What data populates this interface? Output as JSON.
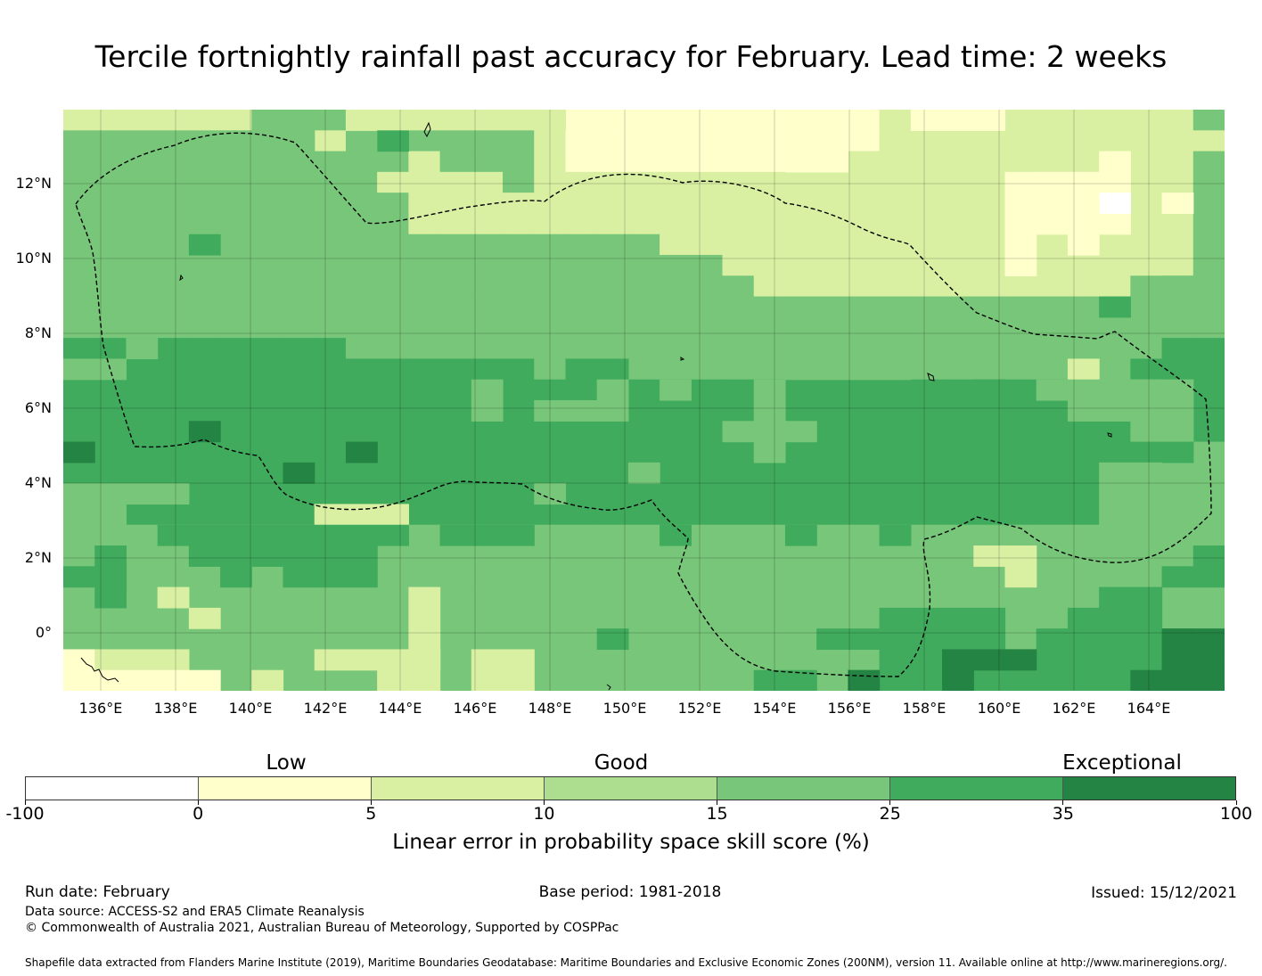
{
  "title": "Tercile fortnightly rainfall past accuracy for February. Lead time: 2 weeks",
  "map": {
    "lat_labels": [
      "12°N",
      "10°N",
      "8°N",
      "6°N",
      "4°N",
      "2°N",
      "0°"
    ],
    "lon_labels": [
      "136°E",
      "138°E",
      "140°E",
      "142°E",
      "144°E",
      "146°E",
      "148°E",
      "150°E",
      "152°E",
      "154°E",
      "156°E",
      "158°E",
      "160°E",
      "162°E",
      "164°E"
    ],
    "skill_grid": [
      "BBBBBBCCCBBBBBBBAAAAAAAAAABBBBBBBBBBC",
      "CCCCCCCCBCBCCCCBAAAAAAAAAABBBBBBBBBBB",
      "CCCCCCCCCCCBCCCBAAAAAAAAABBBBBBBBBBBC",
      "CCCCCCCCCCBBBBCBBBBBBBBBBBBBBBBBBBBBC",
      "CCCCCCCCCCCBBBBBBBBBBBBBBBBBBBBBBBBBC",
      "CCCCCCCCCCCBBBBBBBBBBBBBBBBBBBBBBBBBC",
      "CCCCCCCCCCCCCCCCCCCBBBBBBBBBBBBBBBBBC",
      "CCCCCCCCCCCCCCCCCCCCCBBBBBBBBBBBBBBBC",
      "CCCCCCCCCCCCCCCCCCCCCCBBBBBBBBBBBBBCC",
      "CCCCCCCCCCCCCCCCCCCCCCCCCCCCCCCCCCCCC",
      "CCCCCCCCCCCCCCCCCCCCCCCCCCCCCCCCCCCCC",
      "DDDDDDDDDCCCCCCCCCCCCCCCCCCCCCCCCCCDD",
      "DDDDDDDDDDDDDDDCCCCCCCCCCCCCCCCCCCDDD",
      "DDDDDDDDDDDDDDDDDDDDDDDDDDDDDDDDDCCDD",
      "DDDDDDDDDDDDDDDDDDDDDDDDDDDDDDDDDDDDD",
      "DDDDDDDDDDDDDDDDDDDDDDDDDDDDDDDDDDDDD",
      "EDDDDDDDDDDDDDDDDDDDDDDDDDDDDDDDDDDCC",
      "DDDDDDDDDDDDDDDDDDDDDDDDDDDDDDDDDDDCC",
      "DDDDDDDDDDDDDDDDDDDDDDDDDDDDDDDDDDDCC",
      "DDDDDDDDDDDDDDDDDDDDDDDDDDDDDDDDDDDCC",
      "CCCCCCCCCCCCCCCCCCCCCCCCCCCCCCCCCCCCC",
      "CCCCCCCCCCCCCCCCCCCCCCCCCCCCCCCCCCCCC",
      "CCCCCCCCCCCCCCCCCCCCCCCCCCCCCCCCCCCCC",
      "CCCCCCCCCCCCCCCCCCCCCCCCCCCCCCCCCCCCC",
      "CCCCCCCCCCCCCCCCCCCCCCCCCCCCCCCCCCCCC",
      "CCCCCCCCCCCCCCCCCCCCCCCCCCCCCCCDDDDDE",
      "CCCCCCCCCCCCCCCCCCCCCCCCCCDDDDDDDDDEE",
      "CCCCCCCCCCCCCCCCCCCCCCCCCDDDDDDDDDEEE",
      "CCCCCCCCCCCCCCCCCCCCCCCCDDDDDDDDDDEEE"
    ],
    "skill_patches": [
      {
        "row": 0,
        "col": 9,
        "w": 2,
        "h": 1,
        "level": "B"
      },
      {
        "row": 1,
        "col": 10,
        "w": 1,
        "h": 1,
        "level": "D"
      },
      {
        "row": 1,
        "col": 6,
        "w": 2,
        "h": 2,
        "level": "C"
      },
      {
        "row": 0,
        "col": 15,
        "w": 1,
        "h": 1,
        "level": "B"
      },
      {
        "row": 1,
        "col": 16,
        "w": 6,
        "h": 1,
        "level": "A"
      },
      {
        "row": 2,
        "col": 23,
        "w": 2,
        "h": 1,
        "level": "A"
      },
      {
        "row": 3,
        "col": 34,
        "w": 1,
        "h": 1,
        "level": "B"
      },
      {
        "row": 0,
        "col": 27,
        "w": 3,
        "h": 1,
        "level": "A"
      },
      {
        "row": 2,
        "col": 33,
        "w": 1,
        "h": 1,
        "level": "A"
      },
      {
        "row": 3,
        "col": 31,
        "w": 2,
        "h": 1,
        "level": "A"
      },
      {
        "row": 3,
        "col": 30,
        "w": 1,
        "h": 5,
        "level": "A"
      },
      {
        "row": 3,
        "col": 31,
        "w": 3,
        "h": 3,
        "level": "A"
      },
      {
        "row": 4,
        "col": 35,
        "w": 1,
        "h": 1,
        "level": "A"
      },
      {
        "row": 4,
        "col": 33,
        "w": 1,
        "h": 1,
        "level": "Z"
      },
      {
        "row": 5,
        "col": 24,
        "w": 2,
        "h": 3,
        "level": "B"
      },
      {
        "row": 6,
        "col": 22,
        "w": 2,
        "h": 2,
        "level": "B"
      },
      {
        "row": 6,
        "col": 25,
        "w": 4,
        "h": 2,
        "level": "B"
      },
      {
        "row": 4,
        "col": 32,
        "w": 1,
        "h": 3,
        "level": "A"
      },
      {
        "row": 7,
        "col": 34,
        "w": 1,
        "h": 1,
        "level": "B"
      },
      {
        "row": 8,
        "col": 34,
        "w": 2,
        "h": 1,
        "level": "C"
      },
      {
        "row": 9,
        "col": 33,
        "w": 1,
        "h": 1,
        "level": "D"
      },
      {
        "row": 12,
        "col": 32,
        "w": 1,
        "h": 1,
        "level": "B"
      },
      {
        "row": 6,
        "col": 4,
        "w": 1,
        "h": 1,
        "level": "D"
      },
      {
        "row": 12,
        "col": 0,
        "w": 2,
        "h": 1,
        "level": "C"
      },
      {
        "row": 11,
        "col": 2,
        "w": 1,
        "h": 1,
        "level": "C"
      },
      {
        "row": 13,
        "col": 29,
        "w": 1,
        "h": 1,
        "level": "D"
      },
      {
        "row": 12,
        "col": 23,
        "w": 4,
        "h": 1,
        "level": "C"
      },
      {
        "row": 12,
        "col": 16,
        "w": 2,
        "h": 1,
        "level": "D"
      },
      {
        "row": 13,
        "col": 13,
        "w": 1,
        "h": 1,
        "level": "C"
      },
      {
        "row": 13,
        "col": 17,
        "w": 1,
        "h": 1,
        "level": "C"
      },
      {
        "row": 13,
        "col": 19,
        "w": 1,
        "h": 1,
        "level": "C"
      },
      {
        "row": 13,
        "col": 22,
        "w": 1,
        "h": 1,
        "level": "C"
      },
      {
        "row": 13,
        "col": 31,
        "w": 5,
        "h": 1,
        "level": "C"
      },
      {
        "row": 14,
        "col": 13,
        "w": 1,
        "h": 1,
        "level": "C"
      },
      {
        "row": 14,
        "col": 15,
        "w": 3,
        "h": 1,
        "level": "C"
      },
      {
        "row": 14,
        "col": 22,
        "w": 1,
        "h": 1,
        "level": "C"
      },
      {
        "row": 14,
        "col": 32,
        "w": 4,
        "h": 1,
        "level": "C"
      },
      {
        "row": 15,
        "col": 4,
        "w": 1,
        "h": 1,
        "level": "E"
      },
      {
        "row": 15,
        "col": 21,
        "w": 3,
        "h": 1,
        "level": "C"
      },
      {
        "row": 15,
        "col": 34,
        "w": 2,
        "h": 1,
        "level": "C"
      },
      {
        "row": 16,
        "col": 9,
        "w": 1,
        "h": 1,
        "level": "E"
      },
      {
        "row": 16,
        "col": 22,
        "w": 1,
        "h": 1,
        "level": "C"
      },
      {
        "row": 16,
        "col": 34,
        "w": 2,
        "h": 1,
        "level": "D"
      },
      {
        "row": 17,
        "col": 7,
        "w": 1,
        "h": 1,
        "level": "E"
      },
      {
        "row": 16,
        "col": 0,
        "w": 1,
        "h": 1,
        "level": "E"
      },
      {
        "row": 17,
        "col": 18,
        "w": 1,
        "h": 1,
        "level": "C"
      },
      {
        "row": 18,
        "col": 15,
        "w": 1,
        "h": 1,
        "level": "C"
      },
      {
        "row": 17,
        "col": 33,
        "w": 2,
        "h": 1,
        "level": "C"
      },
      {
        "row": 18,
        "col": 33,
        "w": 2,
        "h": 1,
        "level": "C"
      },
      {
        "row": 19,
        "col": 33,
        "w": 2,
        "h": 1,
        "level": "C"
      },
      {
        "row": 18,
        "col": 0,
        "w": 4,
        "h": 1,
        "level": "C"
      },
      {
        "row": 19,
        "col": 0,
        "w": 2,
        "h": 1,
        "level": "C"
      },
      {
        "row": 19,
        "col": 8,
        "w": 3,
        "h": 1,
        "level": "B"
      },
      {
        "row": 20,
        "col": 3,
        "w": 8,
        "h": 1,
        "level": "D"
      },
      {
        "row": 20,
        "col": 12,
        "w": 3,
        "h": 1,
        "level": "D"
      },
      {
        "row": 20,
        "col": 19,
        "w": 1,
        "h": 1,
        "level": "D"
      },
      {
        "row": 20,
        "col": 23,
        "w": 1,
        "h": 1,
        "level": "D"
      },
      {
        "row": 20,
        "col": 26,
        "w": 1,
        "h": 1,
        "level": "D"
      },
      {
        "row": 21,
        "col": 1,
        "w": 1,
        "h": 2,
        "level": "D"
      },
      {
        "row": 21,
        "col": 4,
        "w": 3,
        "h": 1,
        "level": "D"
      },
      {
        "row": 21,
        "col": 7,
        "w": 3,
        "h": 2,
        "level": "D"
      },
      {
        "row": 21,
        "col": 5,
        "w": 1,
        "h": 2,
        "level": "D"
      },
      {
        "row": 22,
        "col": 0,
        "w": 2,
        "h": 1,
        "level": "D"
      },
      {
        "row": 23,
        "col": 1,
        "w": 1,
        "h": 1,
        "level": "D"
      },
      {
        "row": 21,
        "col": 29,
        "w": 2,
        "h": 1,
        "level": "B"
      },
      {
        "row": 22,
        "col": 30,
        "w": 1,
        "h": 1,
        "level": "B"
      },
      {
        "row": 23,
        "col": 3,
        "w": 1,
        "h": 1,
        "level": "B"
      },
      {
        "row": 24,
        "col": 4,
        "w": 1,
        "h": 1,
        "level": "B"
      },
      {
        "row": 23,
        "col": 11,
        "w": 1,
        "h": 4,
        "level": "B"
      },
      {
        "row": 25,
        "col": 17,
        "w": 1,
        "h": 1,
        "level": "D"
      },
      {
        "row": 23,
        "col": 33,
        "w": 2,
        "h": 2,
        "level": "D"
      },
      {
        "row": 24,
        "col": 32,
        "w": 1,
        "h": 1,
        "level": "D"
      },
      {
        "row": 22,
        "col": 35,
        "w": 2,
        "h": 1,
        "level": "D"
      },
      {
        "row": 21,
        "col": 36,
        "w": 1,
        "h": 1,
        "level": "D"
      },
      {
        "row": 25,
        "col": 24,
        "w": 6,
        "h": 1,
        "level": "D"
      },
      {
        "row": 24,
        "col": 26,
        "w": 4,
        "h": 1,
        "level": "D"
      },
      {
        "row": 25,
        "col": 35,
        "w": 1,
        "h": 1,
        "level": "E"
      },
      {
        "row": 26,
        "col": 28,
        "w": 3,
        "h": 1,
        "level": "E"
      },
      {
        "row": 27,
        "col": 28,
        "w": 1,
        "h": 1,
        "level": "E"
      },
      {
        "row": 27,
        "col": 31,
        "w": 1,
        "h": 1,
        "level": "D"
      },
      {
        "row": 27,
        "col": 22,
        "w": 2,
        "h": 2,
        "level": "D"
      },
      {
        "row": 27,
        "col": 25,
        "w": 1,
        "h": 2,
        "level": "E"
      },
      {
        "row": 26,
        "col": 0,
        "w": 1,
        "h": 3,
        "level": "A"
      },
      {
        "row": 26,
        "col": 1,
        "w": 3,
        "h": 1,
        "level": "B"
      },
      {
        "row": 27,
        "col": 1,
        "w": 4,
        "h": 2,
        "level": "A"
      },
      {
        "row": 26,
        "col": 8,
        "w": 4,
        "h": 1,
        "level": "B"
      },
      {
        "row": 27,
        "col": 10,
        "w": 2,
        "h": 1,
        "level": "B"
      },
      {
        "row": 26,
        "col": 13,
        "w": 2,
        "h": 2,
        "level": "B"
      },
      {
        "row": 27,
        "col": 6,
        "w": 1,
        "h": 1,
        "level": "B"
      },
      {
        "row": 28,
        "col": 29,
        "w": 1,
        "h": 1,
        "level": "D"
      }
    ]
  },
  "legend": {
    "categories": [
      "Low",
      "Good",
      "Exceptional"
    ],
    "colors": [
      "#ffffff",
      "#ffffcc",
      "#d9f0a3",
      "#addd8e",
      "#78c679",
      "#41ab5d",
      "#238443"
    ],
    "tick_labels": [
      "-100",
      "0",
      "5",
      "10",
      "15",
      "25",
      "35",
      "100"
    ],
    "xlabel": "Linear error in probability space skill score (%)"
  },
  "footer": {
    "run_date": "Run date: February",
    "base_period": "Base period: 1981-2018",
    "issued": "Issued: 15/12/2021",
    "data_source": "Data source: ACCESS-S2 and ERA5 Climate Reanalysis",
    "copyright": "© Commonwealth of Australia 2021, Australian Bureau of Meteorology, Supported by COSPPac",
    "shapefile": "Shapefile data extracted from Flanders Marine Institute (2019), Maritime Boundaries Geodatabase: Maritime Boundaries and Exclusive Economic Zones (200NM), version 11. Available online at http://www.marineregions.org/."
  }
}
